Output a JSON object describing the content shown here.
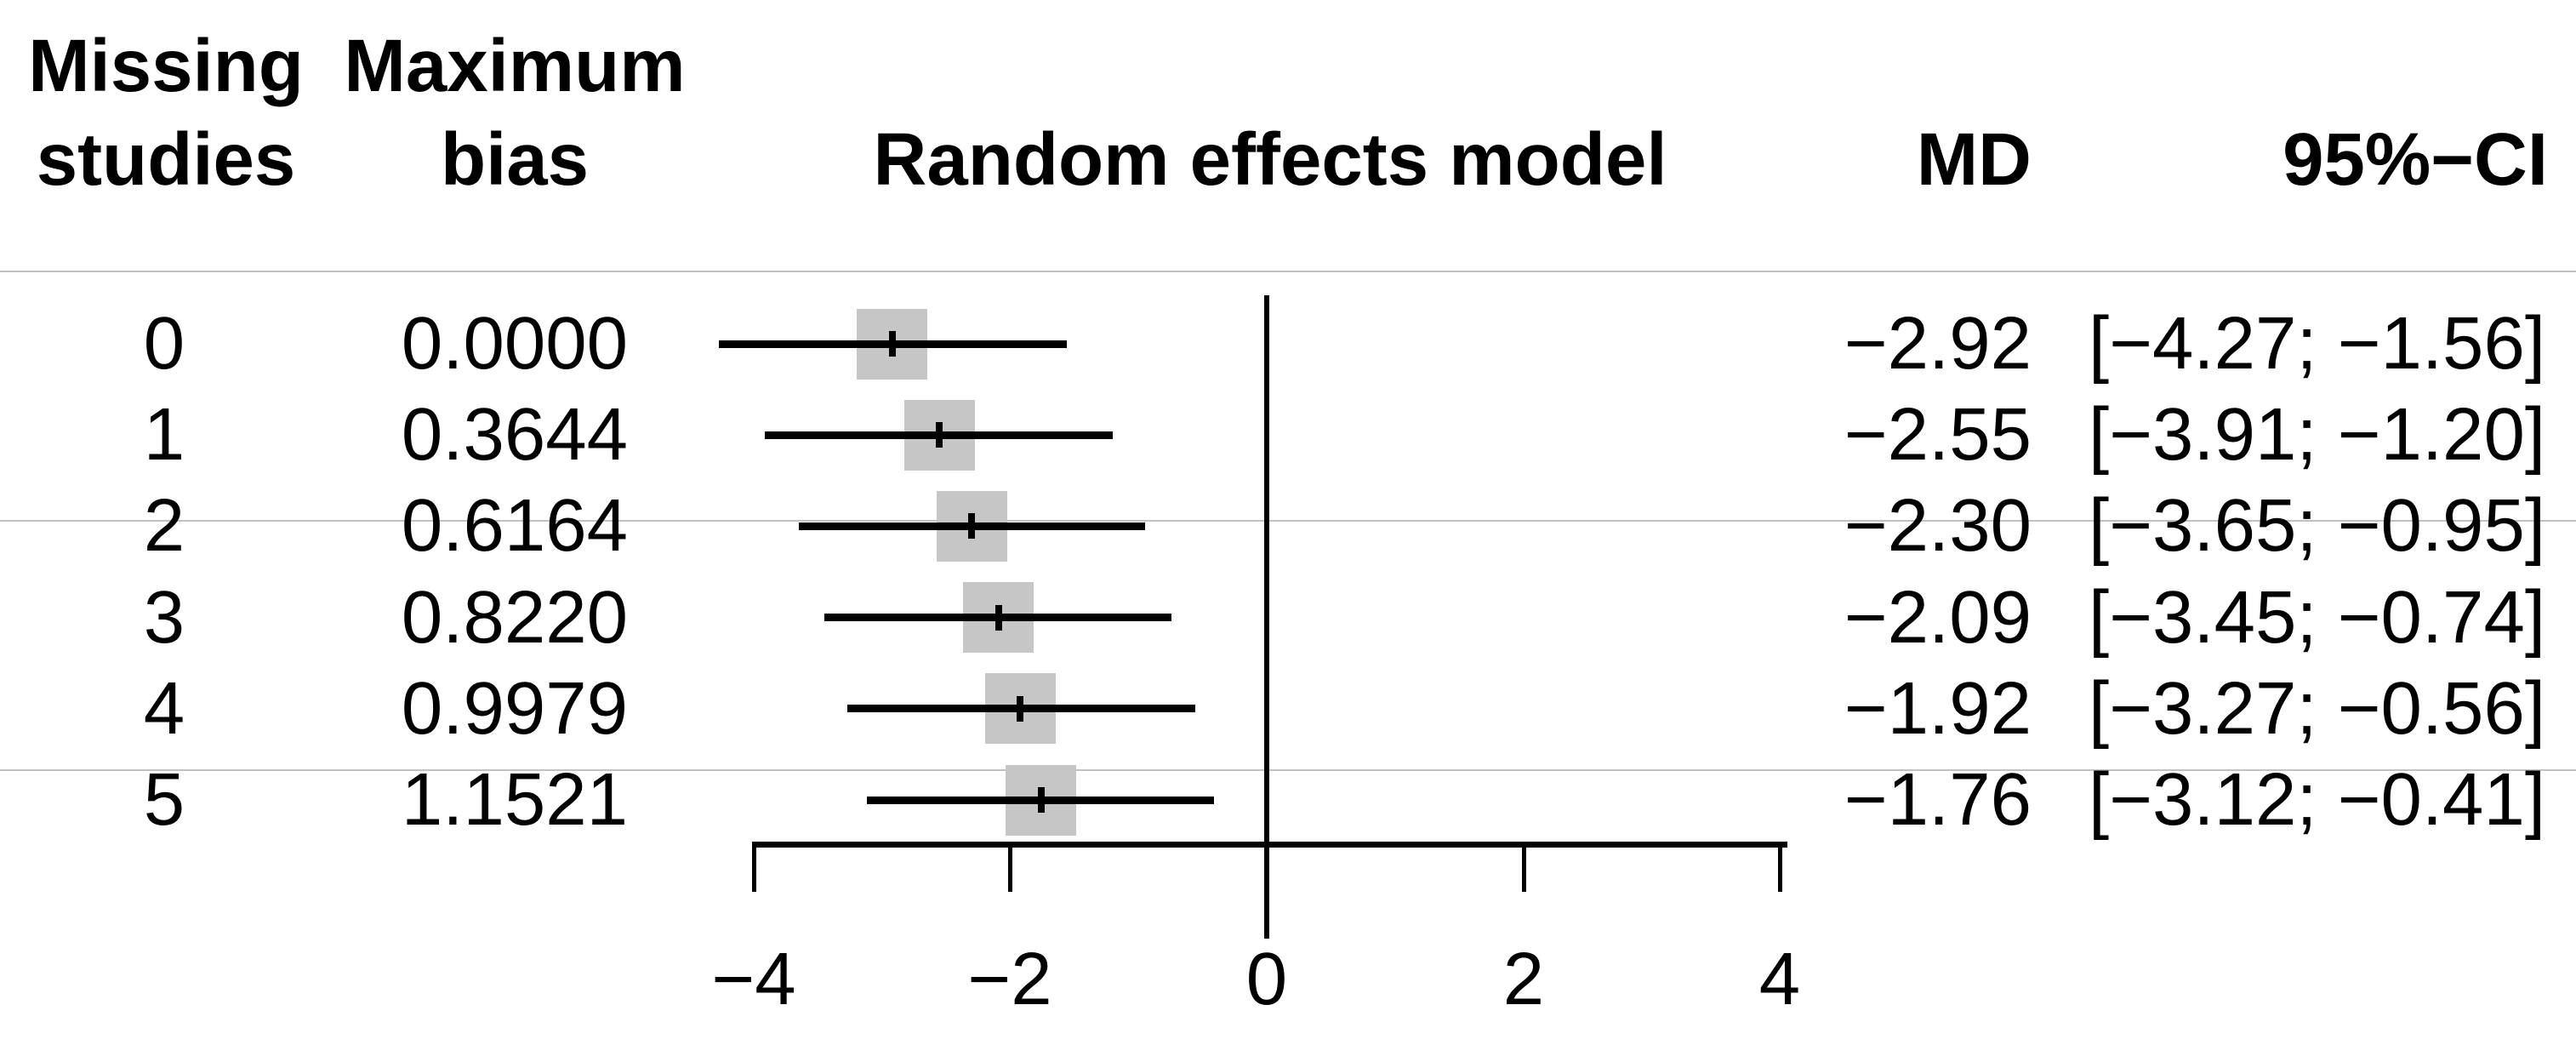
{
  "chart_data": {
    "type": "forest",
    "title": "Random effects model",
    "columns": {
      "study_line1": "Missing",
      "study_line2": "studies",
      "bias_line1": "Maximum",
      "bias_line2": "bias",
      "effect": "MD",
      "ci": "95%−CI"
    },
    "rows": [
      {
        "missing_studies": "0",
        "maximum_bias": "0.0000",
        "md": -2.92,
        "ci_low": -4.27,
        "ci_high": -1.56,
        "md_text": "−2.92",
        "ci_text": "[−4.27; −1.56]"
      },
      {
        "missing_studies": "1",
        "maximum_bias": "0.3644",
        "md": -2.55,
        "ci_low": -3.91,
        "ci_high": -1.2,
        "md_text": "−2.55",
        "ci_text": "[−3.91; −1.20]"
      },
      {
        "missing_studies": "2",
        "maximum_bias": "0.6164",
        "md": -2.3,
        "ci_low": -3.65,
        "ci_high": -0.95,
        "md_text": "−2.30",
        "ci_text": "[−3.65; −0.95]"
      },
      {
        "missing_studies": "3",
        "maximum_bias": "0.8220",
        "md": -2.09,
        "ci_low": -3.45,
        "ci_high": -0.74,
        "md_text": "−2.09",
        "ci_text": "[−3.45; −0.74]"
      },
      {
        "missing_studies": "4",
        "maximum_bias": "0.9979",
        "md": -1.92,
        "ci_low": -3.27,
        "ci_high": -0.56,
        "md_text": "−1.92",
        "ci_text": "[−3.27; −0.56]"
      },
      {
        "missing_studies": "5",
        "maximum_bias": "1.1521",
        "md": -1.76,
        "ci_low": -3.12,
        "ci_high": -0.41,
        "md_text": "−1.76",
        "ci_text": "[−3.12; −0.41]"
      }
    ],
    "x_axis": {
      "ticks": [
        -4,
        -2,
        0,
        2,
        4
      ],
      "tick_labels": [
        "−4",
        "−2",
        "0",
        "2",
        "4"
      ],
      "range": [
        -4,
        4
      ],
      "reference_line": 0
    },
    "legend_position": "none",
    "grid": false,
    "colors": {
      "square": "#c6c6c6",
      "line": "#000000",
      "text": "#000000",
      "artifact_line": "#c2c2c2"
    }
  }
}
